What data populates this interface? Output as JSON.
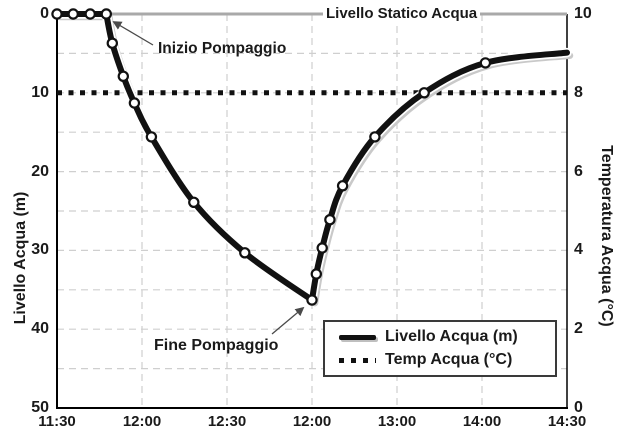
{
  "colors": {
    "curve": "#111111",
    "curve_shadow": "#c9c9c9",
    "curve_casing": "#ffffff",
    "marker_fill": "#ffffff",
    "static_line": "#a9a9a9",
    "temp_line": "#111111",
    "grid": "#cfcfcf",
    "spine": "#000000",
    "arrow": "#4a4a4a",
    "text": "#1a1a1a"
  },
  "chart_data": {
    "type": "line",
    "x_axis": {
      "tick_labels": [
        "11:30",
        "12:00",
        "12:30",
        "12:00",
        "13:00",
        "14:00",
        "14:30"
      ]
    },
    "left_axis": {
      "label": "Livello Acqua (m)",
      "tick_labels": [
        "0",
        "10",
        "20",
        "30",
        "40",
        "50"
      ],
      "min": 0,
      "max": 50,
      "inverted": true
    },
    "right_axis": {
      "label": "Temperatura Acqua (°C)",
      "tick_labels": [
        "10",
        "8",
        "6",
        "4",
        "2",
        "0"
      ],
      "min": 0,
      "max": 10
    },
    "grid": {
      "horizontal_step_m": 5,
      "vertical_at_major_ticks": true,
      "style": "dashed"
    },
    "series": [
      {
        "name": "Livello Acqua (m)",
        "axis": "left",
        "style": "solid",
        "points_t_m": [
          [
            0.0,
            0
          ],
          [
            0.19,
            0
          ],
          [
            0.39,
            0
          ],
          [
            0.58,
            0
          ],
          [
            0.65,
            3.7
          ],
          [
            0.78,
            7.9
          ],
          [
            0.91,
            11.3
          ],
          [
            1.11,
            15.6
          ],
          [
            1.61,
            23.9
          ],
          [
            2.21,
            30.3
          ],
          [
            3.0,
            36.3
          ],
          [
            3.05,
            33.0
          ],
          [
            3.12,
            29.7
          ],
          [
            3.21,
            26.1
          ],
          [
            3.36,
            21.8
          ],
          [
            3.74,
            15.6
          ],
          [
            4.32,
            10.0
          ],
          [
            5.04,
            6.2
          ],
          [
            6.0,
            4.9
          ]
        ],
        "flat_end_index": 3,
        "trough_index": 10,
        "last_point_has_marker": false
      },
      {
        "name": "Temp Acqua (°C)",
        "axis": "right",
        "style": "dotted",
        "constant_value_c": 8
      }
    ],
    "static_level": {
      "label": "Livello Statico Acqua",
      "level_m": 0
    },
    "annotations": [
      {
        "text": "Inizio Pompaggio",
        "points_to": "start of drawdown at 0 m"
      },
      {
        "text": "Fine Pompaggio",
        "points_to": "maximum drawdown ~36 m"
      }
    ],
    "legend": {
      "entries": [
        {
          "label": "Livello Acqua (m)",
          "style": "solid"
        },
        {
          "label": "Temp Acqua (°C)",
          "style": "dotted"
        }
      ]
    }
  }
}
